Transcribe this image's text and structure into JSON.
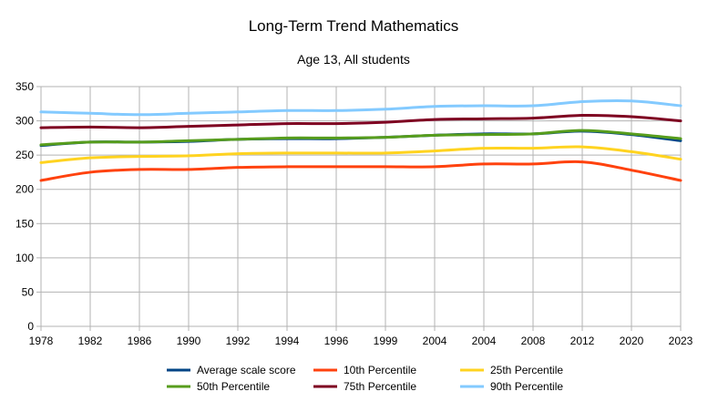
{
  "chart_data": {
    "type": "line",
    "title": "Long-Term Trend Mathematics",
    "subtitle": "Age 13, All students",
    "categories": [
      "1978",
      "1982",
      "1986",
      "1990",
      "1992",
      "1994",
      "1996",
      "1999",
      "2004",
      "2004",
      "2008",
      "2012",
      "2020",
      "2023"
    ],
    "ylim": [
      0,
      350
    ],
    "yticks": [
      0,
      50,
      100,
      150,
      200,
      250,
      300,
      350
    ],
    "grid": true,
    "legend_position": "bottom",
    "series": [
      {
        "name": "Average scale score",
        "color": "#004586",
        "values": [
          264,
          269,
          269,
          270,
          273,
          274,
          274,
          276,
          279,
          281,
          281,
          285,
          280,
          271
        ]
      },
      {
        "name": "10th Percentile",
        "color": "#ff420e",
        "values": [
          213,
          225,
          229,
          229,
          232,
          233,
          233,
          233,
          233,
          237,
          237,
          240,
          228,
          213
        ]
      },
      {
        "name": "25th Percentile",
        "color": "#ffd320",
        "values": [
          239,
          246,
          248,
          249,
          252,
          253,
          253,
          253,
          256,
          260,
          260,
          262,
          255,
          244
        ]
      },
      {
        "name": "50th Percentile",
        "color": "#579d1c",
        "values": [
          265,
          269,
          269,
          271,
          273,
          275,
          275,
          276,
          279,
          280,
          281,
          286,
          281,
          274
        ]
      },
      {
        "name": "75th Percentile",
        "color": "#7e0021",
        "values": [
          290,
          291,
          290,
          292,
          294,
          296,
          296,
          298,
          302,
          303,
          304,
          308,
          306,
          300
        ]
      },
      {
        "name": "90th Percentile",
        "color": "#83caff",
        "values": [
          313,
          311,
          309,
          311,
          313,
          315,
          315,
          317,
          321,
          322,
          322,
          328,
          329,
          322
        ]
      }
    ]
  }
}
